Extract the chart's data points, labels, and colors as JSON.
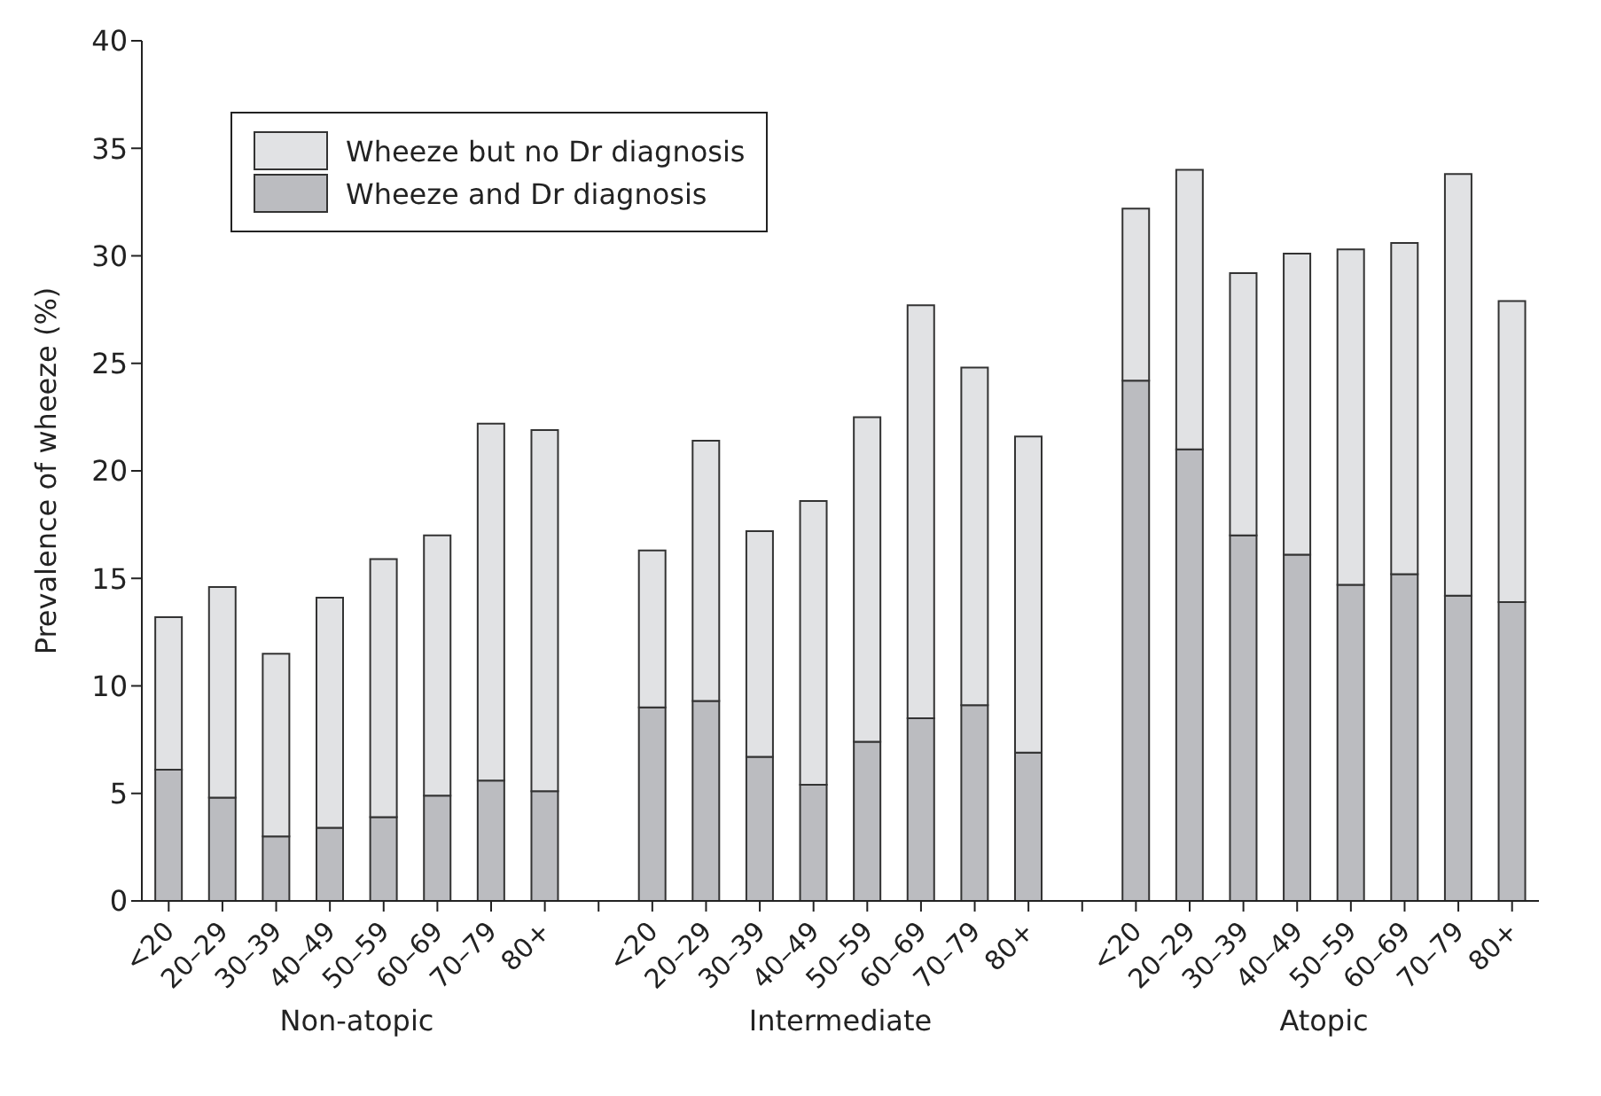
{
  "chart_data": {
    "type": "bar",
    "stacked": true,
    "ylabel": "Prevalence of wheeze (%)",
    "categories": [
      "<20",
      "20–29",
      "30–39",
      "40–49",
      "50–59",
      "60–69",
      "70–79",
      "80+",
      null,
      "<20",
      "20–29",
      "30–39",
      "40–49",
      "50–59",
      "60–69",
      "70–79",
      "80+",
      null,
      "<20",
      "20–29",
      "30–39",
      "40–49",
      "50–59",
      "60–69",
      "70–79",
      "80+"
    ],
    "series": [
      {
        "name": "Wheeze and Dr diagnosis",
        "color": "#bbbcc0",
        "values": [
          6.1,
          4.8,
          3.0,
          3.4,
          3.9,
          4.9,
          5.6,
          5.1,
          null,
          9.0,
          9.3,
          6.7,
          5.4,
          7.4,
          8.5,
          9.1,
          6.9,
          null,
          24.2,
          21.0,
          17.0,
          16.1,
          14.7,
          15.2,
          14.2,
          13.9
        ]
      },
      {
        "name": "Wheeze but no Dr diagnosis",
        "color": "#e1e2e4",
        "values": [
          7.1,
          9.8,
          8.5,
          10.7,
          12.0,
          12.1,
          16.6,
          16.8,
          null,
          7.3,
          12.1,
          10.5,
          13.2,
          15.1,
          19.2,
          15.7,
          14.7,
          null,
          8.0,
          13.0,
          12.2,
          14.0,
          15.6,
          15.4,
          19.6,
          14.0
        ]
      }
    ],
    "annotations": [
      "Non-atopic",
      "Intermediate",
      "Atopic"
    ],
    "ylim": [
      0,
      40
    ],
    "yticks": [
      0,
      5,
      10,
      15,
      20,
      25,
      30,
      35,
      40
    ],
    "grid": false,
    "legend": "top left"
  }
}
